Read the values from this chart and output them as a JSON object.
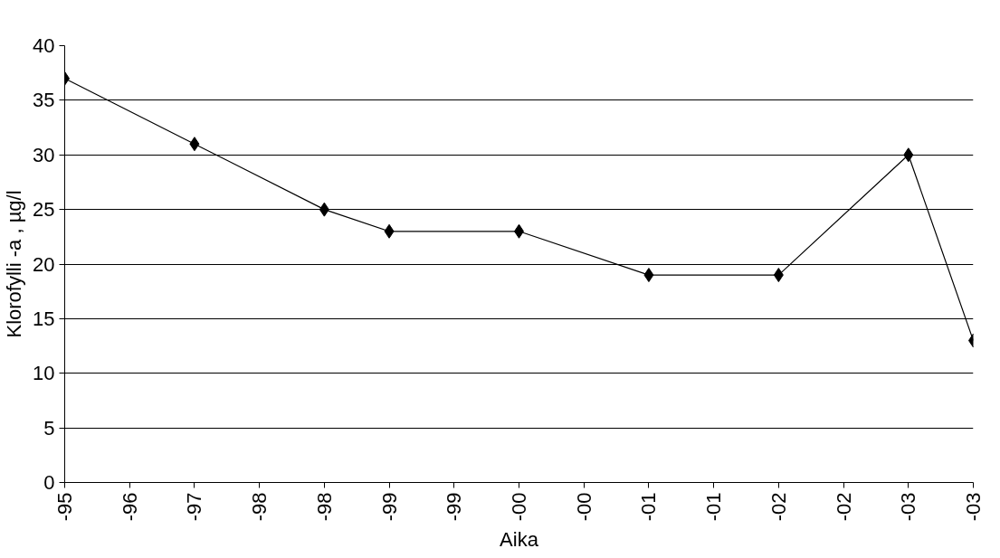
{
  "chart_data": {
    "type": "line",
    "xlabel": "Aika",
    "ylabel": "Klorofylli -a , µg/l",
    "categories": [
      "-95",
      "-96",
      "-97",
      "-98",
      "-98",
      "-99",
      "-99",
      "-00",
      "-00",
      "-01",
      "-01",
      "-02",
      "-02",
      "-03",
      "-03"
    ],
    "series": [
      {
        "color": "#000000",
        "values": [
          37,
          null,
          31,
          null,
          25,
          23,
          null,
          23,
          null,
          19,
          null,
          19,
          null,
          30,
          13
        ]
      }
    ],
    "ylim": [
      0,
      40
    ],
    "yticks": [
      0,
      5,
      10,
      15,
      20,
      25,
      30,
      35,
      40
    ],
    "grid": "y",
    "marker": "diamond",
    "line_style": "solid"
  }
}
